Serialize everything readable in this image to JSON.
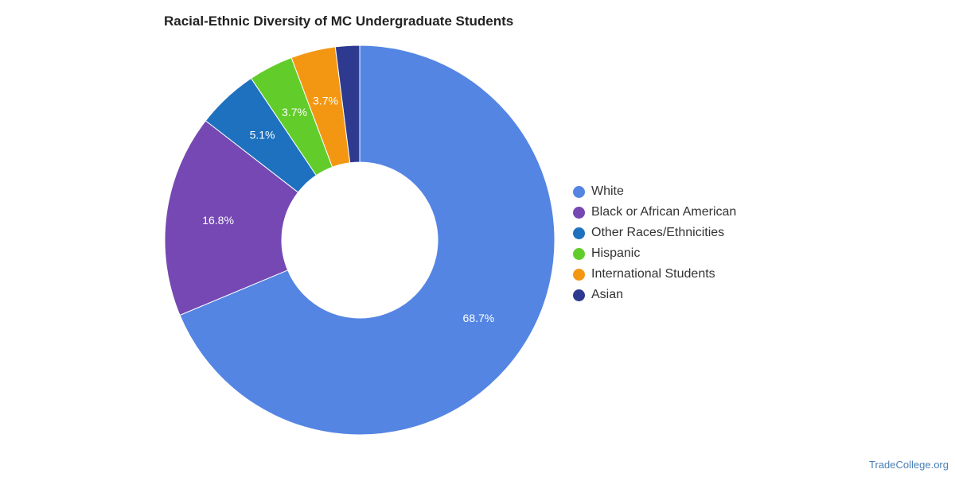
{
  "chart_data": {
    "type": "pie",
    "title": "Racial-Ethnic Diversity of MC Undergraduate Students",
    "donut": true,
    "legend_position": "right",
    "categories": [
      "White",
      "Black or African American",
      "Other Races/Ethnicities",
      "Hispanic",
      "International Students",
      "Asian"
    ],
    "values": [
      68.7,
      16.8,
      5.1,
      3.7,
      3.7,
      2.0
    ],
    "labels": [
      "68.7%",
      "16.8%",
      "5.1%",
      "3.7%",
      "3.7%",
      ""
    ],
    "colors": [
      "#5485e3",
      "#7548b3",
      "#1e71be",
      "#62cd2a",
      "#f39713",
      "#2d3a8f"
    ]
  },
  "watermark": "TradeCollege.org"
}
